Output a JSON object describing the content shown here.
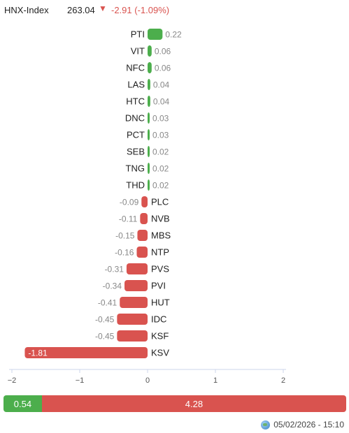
{
  "header": {
    "index_name": "HNX-Index",
    "index_value": "263.04",
    "index_change": "-2.91 (-1.09%)"
  },
  "colors": {
    "up": "#4cae4c",
    "down": "#d9534f",
    "label": "#888888"
  },
  "chart_data": {
    "type": "bar",
    "orientation": "horizontal",
    "categories": [
      "PTI",
      "VIT",
      "NFC",
      "LAS",
      "HTC",
      "DNC",
      "PCT",
      "SEB",
      "TNG",
      "THD",
      "PLC",
      "NVB",
      "MBS",
      "NTP",
      "PVS",
      "PVI",
      "HUT",
      "IDC",
      "KSF",
      "KSV"
    ],
    "values": [
      0.22,
      0.06,
      0.06,
      0.04,
      0.04,
      0.03,
      0.03,
      0.02,
      0.02,
      0.02,
      -0.09,
      -0.11,
      -0.15,
      -0.16,
      -0.31,
      -0.34,
      -0.41,
      -0.45,
      -0.45,
      -1.81
    ],
    "value_labels": [
      "0.22",
      "0.06",
      "0.06",
      "0.04",
      "0.04",
      "0.03",
      "0.03",
      "0.02",
      "0.02",
      "0.02",
      "-0.09",
      "-0.11",
      "-0.15",
      "-0.16",
      "-0.31",
      "-0.34",
      "-0.41",
      "-0.45",
      "-0.45",
      "-1.81"
    ],
    "xlim": [
      -2,
      2
    ],
    "xticks": [
      -2,
      -1,
      0,
      1,
      2
    ],
    "xtick_labels": [
      "−2",
      "−1",
      "0",
      "1",
      "2"
    ],
    "grid": false
  },
  "summary": {
    "up_value": "0.54",
    "down_value": "4.28",
    "up_ratio": 0.112,
    "down_ratio": 0.888
  },
  "footer": {
    "timestamp": "05/02/2026 - 15:10",
    "icon": "globe-icon"
  }
}
